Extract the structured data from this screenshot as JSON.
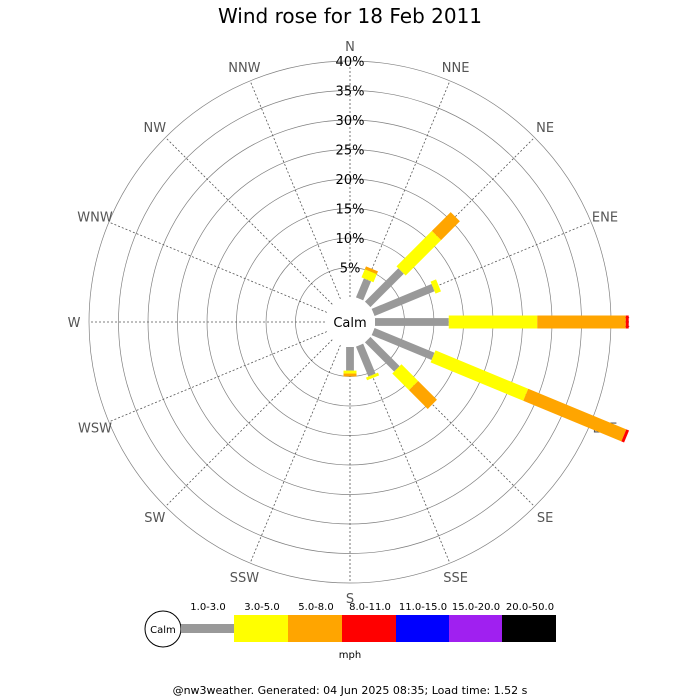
{
  "title": "Wind rose for 18 Feb 2011",
  "footer": "@nw3weather. Generated: 04 Jun 2025 08:35; Load time: 1.52 s",
  "calm_label": "Calm",
  "unit_label": "mph",
  "chart_data": {
    "type": "wind-rose",
    "directions": [
      "N",
      "NNE",
      "NE",
      "ENE",
      "E",
      "ESE",
      "SE",
      "SSE",
      "S",
      "SSW",
      "SW",
      "WSW",
      "W",
      "WNW",
      "NW",
      "NNW"
    ],
    "radial_ticks": [
      "5%",
      "10%",
      "15%",
      "20%",
      "25%",
      "30%",
      "35%",
      "40%"
    ],
    "radial_max": 40,
    "legend_position": "bottom",
    "speed_bins": [
      {
        "label": "1.0-3.0",
        "color": "#999999"
      },
      {
        "label": "3.0-5.0",
        "color": "#ffff00"
      },
      {
        "label": "5.0-8.0",
        "color": "#ffa500"
      },
      {
        "label": "8.0-11.0",
        "color": "#ff0000"
      },
      {
        "label": "11.0-15.0",
        "color": "#0000ff"
      },
      {
        "label": "15.0-20.0",
        "color": "#a020f0"
      },
      {
        "label": "20.0-50.0",
        "color": "#000000"
      }
    ],
    "series": [
      {
        "direction": "NNE",
        "cumulative": [
          3.5,
          5.0,
          5.5,
          5.5
        ]
      },
      {
        "direction": "NE",
        "cumulative": [
          8.0,
          16.5,
          21.0,
          21.0
        ]
      },
      {
        "direction": "ENE",
        "cumulative": [
          11.0,
          12.0,
          12.0,
          12.0
        ]
      },
      {
        "direction": "E",
        "cumulative": [
          12.5,
          27.5,
          42.5,
          43.0
        ]
      },
      {
        "direction": "ESE",
        "cumulative": [
          11.0,
          28.0,
          46.0,
          46.5
        ]
      },
      {
        "direction": "SE",
        "cumulative": [
          7.0,
          11.0,
          15.5,
          15.5
        ]
      },
      {
        "direction": "SSE",
        "cumulative": [
          5.5,
          6.0,
          6.0,
          6.0
        ]
      },
      {
        "direction": "S",
        "cumulative": [
          4.0,
          4.5,
          5.0,
          5.0
        ]
      }
    ]
  }
}
